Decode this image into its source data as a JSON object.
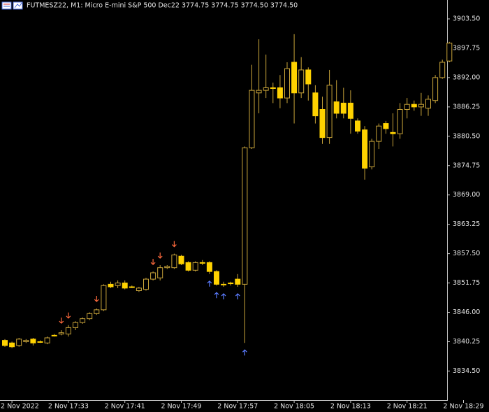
{
  "chart_data": {
    "type": "candlestick",
    "title": "FUTMESZ22, M1:  Micro E-mini S&P 500 Dec22  3774.75 3774.75 3774.50 3774.50",
    "categories": [
      null,
      "2 Nov 2022",
      null,
      null,
      null,
      null,
      null,
      null,
      null,
      "2 Nov 17:33",
      null,
      null,
      null,
      null,
      null,
      null,
      null,
      "2 Nov 17:41",
      null,
      null,
      null,
      null,
      null,
      null,
      null,
      "2 Nov 17:49",
      null,
      null,
      null,
      null,
      null,
      null,
      null,
      "2 Nov 17:57",
      null,
      null,
      null,
      null,
      null,
      null,
      null,
      "2 Nov 18:05",
      null,
      null,
      null,
      null,
      null,
      null,
      null,
      "2 Nov 18:13",
      null,
      null,
      null,
      null,
      null,
      null,
      null,
      "2 Nov 18:21",
      null,
      null,
      null,
      null,
      null,
      null,
      null,
      "2 Nov 18:29"
    ],
    "open": [
      3840.5,
      3840,
      3839.5,
      3840.25,
      3840.75,
      3840.25,
      3840,
      3841.5,
      3841.75,
      3841.75,
      3843,
      3844,
      3844.75,
      3845.75,
      3846.5,
      3851.5,
      3851.25,
      3851.75,
      3851,
      3850.25,
      3850.5,
      3852.5,
      3852.75,
      3854.75,
      3854.75,
      3857,
      3855.75,
      3854.25,
      3855.75,
      3855.75,
      3854,
      3851.5,
      3851.75,
      3852.5,
      3851.5,
      3878.25,
      3889,
      3889.5,
      3890,
      3890,
      3888,
      3895,
      3889,
      3893.5,
      3889,
      3885.75,
      3880.25,
      3887.25,
      3887,
      3887,
      3883.5,
      3881.75,
      3874.5,
      3879.5,
      3883,
      3881.25,
      3881,
      3885.75,
      3886.75,
      3886.25,
      3886,
      3887.5,
      3892,
      3895.25,
      null,
      null
    ],
    "high": [
      3840.75,
      3840.25,
      3841,
      3840.75,
      3841,
      3840.5,
      3841.25,
      3841.75,
      3842.5,
      3843.5,
      3844.25,
      3845,
      3846,
      3846.75,
      3851.5,
      3852,
      3852.25,
      3852.25,
      3851.25,
      3851,
      3852.75,
      3854,
      3855.25,
      3855.25,
      3857.5,
      3857.25,
      3856,
      3856,
      3856.25,
      3856,
      3854.25,
      3852,
      3852,
      3853.5,
      3878.5,
      3894.5,
      3899.5,
      3896.5,
      3891,
      3892.5,
      3895,
      3900.5,
      3896,
      3894,
      3890.5,
      3888.25,
      3893.5,
      3891.5,
      3890,
      3889.5,
      3884,
      3882.5,
      3880,
      3883,
      3883.5,
      3885,
      3887,
      3888,
      3887.5,
      3889,
      3888.5,
      3892.5,
      3895.5,
      3899,
      null,
      null
    ],
    "low": [
      3839.25,
      3839,
      3839.25,
      3840,
      3839.5,
      3840,
      3839.75,
      3841.25,
      3841.5,
      3841.25,
      3842.5,
      3843.75,
      3844.5,
      3845.5,
      3846.25,
      3850.75,
      3850.75,
      3850.5,
      3850.75,
      3850,
      3850.25,
      3852.25,
      3852.25,
      3854.5,
      3854.5,
      3855.25,
      3854,
      3854,
      3855.25,
      3853.5,
      3851.25,
      3851,
      3851.25,
      3851,
      3840,
      3878,
      3885,
      3888,
      3887,
      3886,
      3887,
      3883,
      3888,
      3887.5,
      3883,
      3879,
      3879,
      3884,
      3884,
      3881,
      3881,
      3872,
      3874,
      3878,
      3881,
      3878.5,
      3880,
      3884,
      3885.5,
      3884.5,
      3884.5,
      3887,
      3891.75,
      3895,
      null,
      null
    ],
    "close": [
      3839.5,
      3839.25,
      3840.75,
      3840.5,
      3840,
      3840.25,
      3841,
      3841.5,
      3842,
      3843,
      3844,
      3844.75,
      3845.75,
      3846.5,
      3851.25,
      3851,
      3851.75,
      3850.75,
      3851,
      3850.75,
      3852.5,
      3853.75,
      3854.75,
      3855,
      3857.25,
      3855.5,
      3854.25,
      3855.75,
      3855.75,
      3854,
      3851.5,
      3851.5,
      3851.75,
      3851.5,
      3878.25,
      3889.5,
      3889.5,
      3890,
      3890,
      3888,
      3893.75,
      3889,
      3893.5,
      3890.75,
      3884.5,
      3880.25,
      3890.5,
      3885,
      3885,
      3884,
      3881.5,
      3874.25,
      3879.5,
      3882.5,
      3882,
      3881,
      3885.75,
      3886.75,
      3886.25,
      3886.75,
      3887.75,
      3892,
      3895,
      3898.75,
      null,
      null
    ],
    "up_color": "#c9a43a",
    "down_color": "#ffd200",
    "sell_signals": [
      8,
      9,
      13,
      21,
      22,
      24
    ],
    "buy_signals": [
      29,
      30,
      31,
      33,
      34
    ],
    "sell_color": "#ff6a3d",
    "buy_color": "#5b7cff",
    "ylim": [
      3828.8,
      3907.2
    ],
    "yticks": [
      {
        "value": 3903.5,
        "label": "3903.50"
      },
      {
        "value": 3897.75,
        "label": "3897.75"
      },
      {
        "value": 3892,
        "label": "3892.00"
      },
      {
        "value": 3886.25,
        "label": "3886.25"
      },
      {
        "value": 3880.5,
        "label": "3880.50"
      },
      {
        "value": 3874.75,
        "label": "3874.75"
      },
      {
        "value": 3869,
        "label": "3869.00"
      },
      {
        "value": 3863.25,
        "label": "3863.25"
      },
      {
        "value": 3857.5,
        "label": "3857.50"
      },
      {
        "value": 3851.75,
        "label": "3851.75"
      },
      {
        "value": 3846,
        "label": "3846.00"
      },
      {
        "value": 3840.25,
        "label": "3840.25"
      },
      {
        "value": 3834.5,
        "label": "3834.50"
      }
    ],
    "grid": false
  }
}
